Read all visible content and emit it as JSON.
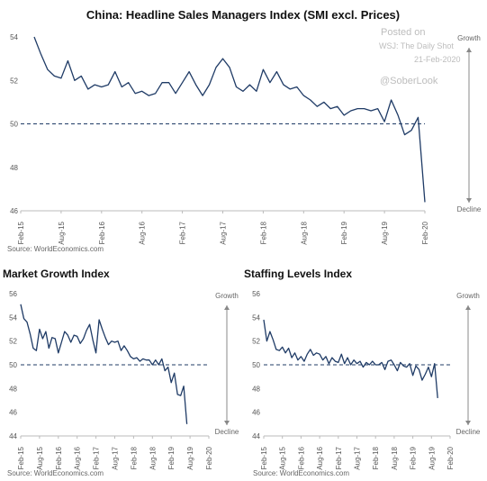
{
  "watermark": {
    "line1": "Posted on",
    "line2": "WSJ: The Daily Shot",
    "line3": "21-Feb-2020",
    "line4": "@SoberLook"
  },
  "colors": {
    "line": "#1f3b66",
    "axis": "#bbbbbb",
    "ref": "#1f3b66",
    "arrow": "#888888"
  },
  "chart_data": [
    {
      "type": "line",
      "title": "China: Headline Sales Managers Index (SMI excl. Prices)",
      "source": "Source: WorldEconomics.com",
      "growth_label": "Growth",
      "decline_label": "Decline",
      "ylim": [
        46,
        54
      ],
      "yticks": [
        "46",
        "48",
        "50",
        "52",
        "54"
      ],
      "reference_line": 50,
      "x_range": [
        0,
        60
      ],
      "xticks": [
        {
          "t": 0,
          "label": "Feb-15"
        },
        {
          "t": 6,
          "label": "Aug-15"
        },
        {
          "t": 12,
          "label": "Feb-16"
        },
        {
          "t": 18,
          "label": "Aug-16"
        },
        {
          "t": 24,
          "label": "Feb-17"
        },
        {
          "t": 30,
          "label": "Aug-17"
        },
        {
          "t": 36,
          "label": "Feb-18"
        },
        {
          "t": 42,
          "label": "Aug-18"
        },
        {
          "t": 48,
          "label": "Feb-19"
        },
        {
          "t": 54,
          "label": "Aug-19"
        },
        {
          "t": 60,
          "label": "Feb-20"
        }
      ],
      "series": [
        {
          "values": [
            [
              2,
              54.0
            ],
            [
              3,
              53.2
            ],
            [
              4,
              52.5
            ],
            [
              5,
              52.2
            ],
            [
              6,
              52.1
            ],
            [
              7,
              52.9
            ],
            [
              8,
              52.0
            ],
            [
              9,
              52.2
            ],
            [
              10,
              51.6
            ],
            [
              11,
              51.8
            ],
            [
              12,
              51.7
            ],
            [
              13,
              51.8
            ],
            [
              14,
              52.4
            ],
            [
              15,
              51.7
            ],
            [
              16,
              51.9
            ],
            [
              17,
              51.4
            ],
            [
              18,
              51.5
            ],
            [
              19,
              51.3
            ],
            [
              20,
              51.4
            ],
            [
              21,
              51.9
            ],
            [
              22,
              51.9
            ],
            [
              23,
              51.4
            ],
            [
              24,
              51.9
            ],
            [
              25,
              52.4
            ],
            [
              26,
              51.8
            ],
            [
              27,
              51.3
            ],
            [
              28,
              51.8
            ],
            [
              29,
              52.6
            ],
            [
              30,
              53.0
            ],
            [
              31,
              52.6
            ],
            [
              32,
              51.7
            ],
            [
              33,
              51.5
            ],
            [
              34,
              51.8
            ],
            [
              35,
              51.5
            ],
            [
              36,
              52.5
            ],
            [
              37,
              51.9
            ],
            [
              38,
              52.4
            ],
            [
              39,
              51.8
            ],
            [
              40,
              51.6
            ],
            [
              41,
              51.7
            ],
            [
              42,
              51.3
            ],
            [
              43,
              51.1
            ],
            [
              44,
              50.8
            ],
            [
              45,
              51.0
            ],
            [
              46,
              50.7
            ],
            [
              47,
              50.8
            ],
            [
              48,
              50.4
            ],
            [
              49,
              50.6
            ],
            [
              50,
              50.7
            ],
            [
              51,
              50.7
            ],
            [
              52,
              50.6
            ],
            [
              53,
              50.7
            ],
            [
              54,
              50.1
            ],
            [
              55,
              51.1
            ],
            [
              56,
              50.4
            ],
            [
              57,
              49.5
            ],
            [
              58,
              49.7
            ],
            [
              59,
              50.3
            ],
            [
              60,
              46.4
            ]
          ]
        }
      ]
    },
    {
      "type": "line",
      "title": "Market Growth Index",
      "source": "Source: WorldEconomics.com",
      "growth_label": "Growth",
      "decline_label": "Decline",
      "ylim": [
        44,
        56
      ],
      "yticks": [
        "44",
        "46",
        "48",
        "50",
        "52",
        "54",
        "56"
      ],
      "reference_line": 50,
      "x_range": [
        0,
        60
      ],
      "xticks": [
        {
          "t": 0,
          "label": "Feb-15"
        },
        {
          "t": 6,
          "label": "Aug-15"
        },
        {
          "t": 12,
          "label": "Feb-16"
        },
        {
          "t": 18,
          "label": "Aug-16"
        },
        {
          "t": 24,
          "label": "Feb-17"
        },
        {
          "t": 30,
          "label": "Aug-17"
        },
        {
          "t": 36,
          "label": "Feb-18"
        },
        {
          "t": 42,
          "label": "Aug-18"
        },
        {
          "t": 48,
          "label": "Feb-19"
        },
        {
          "t": 54,
          "label": "Aug-19"
        },
        {
          "t": 60,
          "label": "Feb-20"
        }
      ],
      "series": [
        {
          "values": [
            [
              0,
              55.1
            ],
            [
              1,
              53.9
            ],
            [
              2,
              53.6
            ],
            [
              3,
              52.6
            ],
            [
              4,
              51.4
            ],
            [
              5,
              51.2
            ],
            [
              6,
              53.0
            ],
            [
              7,
              52.2
            ],
            [
              8,
              52.8
            ],
            [
              9,
              51.4
            ],
            [
              10,
              52.3
            ],
            [
              11,
              52.2
            ],
            [
              12,
              51.0
            ],
            [
              13,
              51.9
            ],
            [
              14,
              52.8
            ],
            [
              15,
              52.5
            ],
            [
              16,
              51.9
            ],
            [
              17,
              52.5
            ],
            [
              18,
              52.4
            ],
            [
              19,
              51.8
            ],
            [
              20,
              52.2
            ],
            [
              21,
              52.9
            ],
            [
              22,
              53.4
            ],
            [
              23,
              52.1
            ],
            [
              24,
              51.0
            ],
            [
              25,
              53.8
            ],
            [
              26,
              53.0
            ],
            [
              27,
              52.3
            ],
            [
              28,
              51.7
            ],
            [
              29,
              52.0
            ],
            [
              30,
              51.9
            ],
            [
              31,
              52.0
            ],
            [
              32,
              51.2
            ],
            [
              33,
              51.6
            ],
            [
              34,
              51.2
            ],
            [
              35,
              50.7
            ],
            [
              36,
              50.5
            ],
            [
              37,
              50.6
            ],
            [
              38,
              50.3
            ],
            [
              39,
              50.5
            ],
            [
              40,
              50.4
            ],
            [
              41,
              50.4
            ],
            [
              42,
              50.0
            ],
            [
              43,
              50.4
            ],
            [
              44,
              50.0
            ],
            [
              45,
              50.5
            ],
            [
              46,
              49.5
            ],
            [
              47,
              49.8
            ],
            [
              48,
              48.5
            ],
            [
              49,
              49.3
            ],
            [
              50,
              47.5
            ],
            [
              51,
              47.4
            ],
            [
              52,
              48.2
            ],
            [
              53,
              45.0
            ]
          ]
        }
      ]
    },
    {
      "type": "line",
      "title": "Staffing Levels Index",
      "source": "Source: WorldEconomics.com",
      "growth_label": "Growth",
      "decline_label": "Decline",
      "ylim": [
        44,
        56
      ],
      "yticks": [
        "44",
        "46",
        "48",
        "50",
        "52",
        "54",
        "56"
      ],
      "reference_line": 50,
      "x_range": [
        0,
        60
      ],
      "xticks": [
        {
          "t": 0,
          "label": "Feb-15"
        },
        {
          "t": 6,
          "label": "Aug-15"
        },
        {
          "t": 12,
          "label": "Feb-16"
        },
        {
          "t": 18,
          "label": "Aug-16"
        },
        {
          "t": 24,
          "label": "Feb-17"
        },
        {
          "t": 30,
          "label": "Aug-17"
        },
        {
          "t": 36,
          "label": "Feb-18"
        },
        {
          "t": 42,
          "label": "Aug-18"
        },
        {
          "t": 48,
          "label": "Feb-19"
        },
        {
          "t": 54,
          "label": "Aug-19"
        },
        {
          "t": 60,
          "label": "Feb-20"
        }
      ],
      "series": [
        {
          "values": [
            [
              0,
              53.8
            ],
            [
              1,
              52.0
            ],
            [
              2,
              52.8
            ],
            [
              3,
              52.1
            ],
            [
              4,
              51.3
            ],
            [
              5,
              51.2
            ],
            [
              6,
              51.5
            ],
            [
              7,
              51.0
            ],
            [
              8,
              51.4
            ],
            [
              9,
              50.6
            ],
            [
              10,
              51.0
            ],
            [
              11,
              50.4
            ],
            [
              12,
              50.7
            ],
            [
              13,
              50.3
            ],
            [
              14,
              50.9
            ],
            [
              15,
              51.3
            ],
            [
              16,
              50.8
            ],
            [
              17,
              51.0
            ],
            [
              18,
              50.9
            ],
            [
              19,
              50.4
            ],
            [
              20,
              50.7
            ],
            [
              21,
              50.1
            ],
            [
              22,
              50.6
            ],
            [
              23,
              50.3
            ],
            [
              24,
              50.2
            ],
            [
              25,
              50.9
            ],
            [
              26,
              50.1
            ],
            [
              27,
              50.6
            ],
            [
              28,
              50.0
            ],
            [
              29,
              50.4
            ],
            [
              30,
              50.1
            ],
            [
              31,
              50.3
            ],
            [
              32,
              49.8
            ],
            [
              33,
              50.2
            ],
            [
              34,
              50.0
            ],
            [
              35,
              50.3
            ],
            [
              36,
              50.0
            ],
            [
              37,
              50.0
            ],
            [
              38,
              50.2
            ],
            [
              39,
              49.6
            ],
            [
              40,
              50.3
            ],
            [
              41,
              50.4
            ],
            [
              42,
              50.0
            ],
            [
              43,
              49.5
            ],
            [
              44,
              50.2
            ],
            [
              45,
              49.9
            ],
            [
              46,
              49.8
            ],
            [
              47,
              50.1
            ],
            [
              48,
              49.1
            ],
            [
              49,
              49.9
            ],
            [
              50,
              49.6
            ],
            [
              51,
              48.7
            ],
            [
              52,
              49.2
            ],
            [
              53,
              49.8
            ],
            [
              54,
              49.0
            ],
            [
              55,
              50.1
            ],
            [
              56,
              47.2
            ]
          ]
        }
      ]
    }
  ]
}
